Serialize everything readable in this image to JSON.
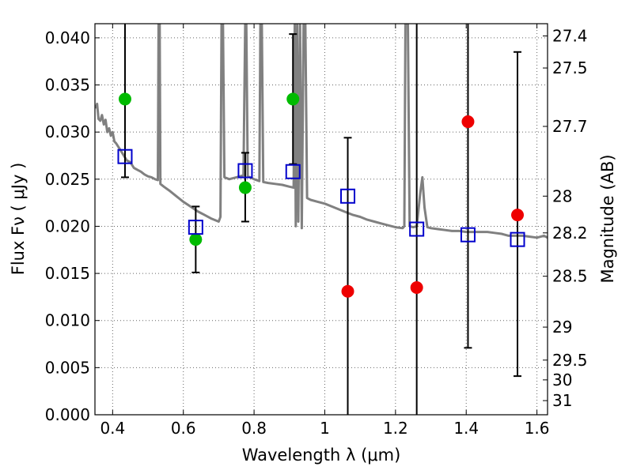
{
  "chart_data": {
    "type": "scatter",
    "xlabel": "Wavelength  λ (μm)",
    "ylabel": "Flux  Fν  ( μJy )",
    "ylabel_right": "Magnitude (AB)",
    "xlim": [
      0.35,
      1.63
    ],
    "ylim": [
      0.0,
      0.0415
    ],
    "grid": true,
    "x_ticks": [
      0.4,
      0.6,
      0.8,
      1.0,
      1.2,
      1.4,
      1.6
    ],
    "x_tick_labels": [
      "0.4",
      "0.6",
      "0.8",
      "1",
      "1.2",
      "1.4",
      "1.6"
    ],
    "y_ticks": [
      0.0,
      0.005,
      0.01,
      0.015,
      0.02,
      0.025,
      0.03,
      0.035,
      0.04
    ],
    "y_tick_labels": [
      "0.000",
      "0.005",
      "0.010",
      "0.015",
      "0.020",
      "0.025",
      "0.030",
      "0.035",
      "0.040"
    ],
    "right_ticks": [
      {
        "label": "27.4",
        "flux": 0.0402
      },
      {
        "label": "27.5",
        "flux": 0.0368
      },
      {
        "label": "27.7",
        "flux": 0.0306
      },
      {
        "label": "28",
        "flux": 0.0232
      },
      {
        "label": "28.2",
        "flux": 0.0193
      },
      {
        "label": "28.5",
        "flux": 0.0147
      },
      {
        "label": "29",
        "flux": 0.0093
      },
      {
        "label": "29.5",
        "flux": 0.0058
      },
      {
        "label": "30",
        "flux": 0.0037
      },
      {
        "label": "31",
        "flux": 0.0015
      }
    ],
    "model_sed": {
      "color": "#808080",
      "points": [
        [
          0.352,
          0.0325
        ],
        [
          0.356,
          0.033
        ],
        [
          0.36,
          0.0314
        ],
        [
          0.365,
          0.0312
        ],
        [
          0.37,
          0.0318
        ],
        [
          0.375,
          0.0308
        ],
        [
          0.38,
          0.0313
        ],
        [
          0.385,
          0.03
        ],
        [
          0.39,
          0.0304
        ],
        [
          0.395,
          0.0296
        ],
        [
          0.4,
          0.03
        ],
        [
          0.405,
          0.029
        ],
        [
          0.41,
          0.0288
        ],
        [
          0.42,
          0.0282
        ],
        [
          0.43,
          0.0276
        ],
        [
          0.44,
          0.027
        ],
        [
          0.45,
          0.0268
        ],
        [
          0.46,
          0.0262
        ],
        [
          0.47,
          0.026
        ],
        [
          0.48,
          0.0258
        ],
        [
          0.49,
          0.0255
        ],
        [
          0.5,
          0.0253
        ],
        [
          0.51,
          0.0252
        ],
        [
          0.52,
          0.025
        ],
        [
          0.528,
          0.0249
        ],
        [
          0.53,
          0.0415
        ],
        [
          0.533,
          0.0415
        ],
        [
          0.535,
          0.0245
        ],
        [
          0.545,
          0.0242
        ],
        [
          0.56,
          0.0238
        ],
        [
          0.58,
          0.0232
        ],
        [
          0.6,
          0.0226
        ],
        [
          0.62,
          0.0221
        ],
        [
          0.64,
          0.0216
        ],
        [
          0.66,
          0.0212
        ],
        [
          0.68,
          0.0208
        ],
        [
          0.7,
          0.0205
        ],
        [
          0.705,
          0.021
        ],
        [
          0.708,
          0.0415
        ],
        [
          0.712,
          0.0415
        ],
        [
          0.716,
          0.0252
        ],
        [
          0.73,
          0.025
        ],
        [
          0.75,
          0.0252
        ],
        [
          0.77,
          0.0254
        ],
        [
          0.775,
          0.0415
        ],
        [
          0.778,
          0.0415
        ],
        [
          0.782,
          0.0253
        ],
        [
          0.8,
          0.025
        ],
        [
          0.815,
          0.0248
        ],
        [
          0.818,
          0.0415
        ],
        [
          0.822,
          0.0415
        ],
        [
          0.826,
          0.0247
        ],
        [
          0.84,
          0.0246
        ],
        [
          0.86,
          0.0245
        ],
        [
          0.88,
          0.0244
        ],
        [
          0.9,
          0.0242
        ],
        [
          0.912,
          0.0241
        ],
        [
          0.915,
          0.0415
        ],
        [
          0.918,
          0.02
        ],
        [
          0.922,
          0.0415
        ],
        [
          0.925,
          0.0205
        ],
        [
          0.93,
          0.0415
        ],
        [
          0.935,
          0.0198
        ],
        [
          0.94,
          0.0415
        ],
        [
          0.945,
          0.0415
        ],
        [
          0.95,
          0.023
        ],
        [
          0.96,
          0.0228
        ],
        [
          0.98,
          0.0226
        ],
        [
          1.0,
          0.0224
        ],
        [
          1.02,
          0.0221
        ],
        [
          1.04,
          0.0218
        ],
        [
          1.06,
          0.0215
        ],
        [
          1.08,
          0.0212
        ],
        [
          1.1,
          0.021
        ],
        [
          1.12,
          0.0207
        ],
        [
          1.14,
          0.0205
        ],
        [
          1.16,
          0.0203
        ],
        [
          1.18,
          0.0201
        ],
        [
          1.2,
          0.0199
        ],
        [
          1.22,
          0.0198
        ],
        [
          1.225,
          0.02
        ],
        [
          1.228,
          0.0415
        ],
        [
          1.235,
          0.0415
        ],
        [
          1.24,
          0.02
        ],
        [
          1.25,
          0.0199
        ],
        [
          1.26,
          0.02
        ],
        [
          1.27,
          0.0235
        ],
        [
          1.276,
          0.0252
        ],
        [
          1.282,
          0.022
        ],
        [
          1.29,
          0.0199
        ],
        [
          1.3,
          0.0198
        ],
        [
          1.32,
          0.0197
        ],
        [
          1.34,
          0.0196
        ],
        [
          1.36,
          0.0195
        ],
        [
          1.38,
          0.0195
        ],
        [
          1.4,
          0.0194
        ],
        [
          1.42,
          0.0194
        ],
        [
          1.44,
          0.0194
        ],
        [
          1.46,
          0.0194
        ],
        [
          1.48,
          0.0193
        ],
        [
          1.5,
          0.0192
        ],
        [
          1.52,
          0.019
        ],
        [
          1.54,
          0.019
        ],
        [
          1.56,
          0.019
        ],
        [
          1.58,
          0.0189
        ],
        [
          1.6,
          0.0188
        ],
        [
          1.62,
          0.019
        ],
        [
          1.63,
          0.0188
        ]
      ]
    },
    "model_bands": {
      "color": "#0000cc",
      "x": [
        0.435,
        0.635,
        0.775,
        0.91,
        1.065,
        1.26,
        1.405,
        1.545
      ],
      "values": [
        0.0274,
        0.0199,
        0.0259,
        0.0258,
        0.0232,
        0.0197,
        0.0191,
        0.0186
      ]
    },
    "detections": {
      "color": "#00bb00",
      "x": [
        0.435,
        0.635,
        0.775,
        0.91
      ],
      "values": [
        0.0335,
        0.0186,
        0.0241,
        0.0335
      ]
    },
    "non_detections": {
      "color": "#ee0000",
      "x": [
        1.065,
        1.26,
        1.405,
        1.545
      ],
      "values": [
        0.0131,
        0.0135,
        0.0311,
        0.0212
      ]
    },
    "error_bars": [
      {
        "x": 0.435,
        "low": 0.0252,
        "high": 0.0415
      },
      {
        "x": 0.635,
        "low": 0.0151,
        "high": 0.0221
      },
      {
        "x": 0.775,
        "low": 0.0205,
        "high": 0.0278
      },
      {
        "x": 0.91,
        "low": 0.0266,
        "high": 0.0404
      },
      {
        "x": 1.065,
        "low": 0.0,
        "high": 0.0294
      },
      {
        "x": 1.26,
        "low": 0.0,
        "high": 0.0415
      },
      {
        "x": 1.405,
        "low": 0.0071,
        "high": 0.0415
      },
      {
        "x": 1.545,
        "low": 0.0041,
        "high": 0.0385
      }
    ]
  }
}
